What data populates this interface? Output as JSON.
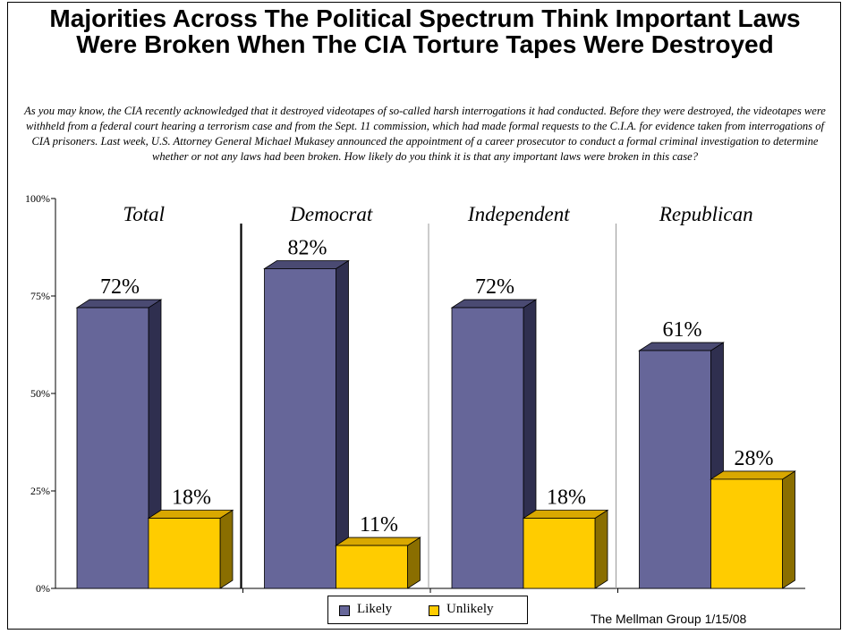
{
  "title": "Majorities Across The Political Spectrum Think Important Laws Were Broken When The CIA Torture Tapes Were Destroyed",
  "subtitle": "As you may know, the CIA recently acknowledged that it destroyed videotapes of so-called harsh interrogations it had conducted.  Before they were destroyed, the videotapes were withheld from a federal court hearing a terrorism case and from the Sept. 11 commission, which had made formal requests to the C.I.A. for evidence taken from interrogations of CIA prisoners.  Last week, U.S. Attorney General Michael Mukasey announced the appointment of a career prosecutor to conduct a formal criminal investigation to determine whether or not any laws had been broken. How likely do you think it is that any important laws were broken in this case?",
  "source": "The Mellman Group 1/15/08",
  "chart_data": {
    "type": "bar",
    "categories": [
      "Total",
      "Democrat",
      "Independent",
      "Republican"
    ],
    "series": [
      {
        "name": "Likely",
        "values": [
          72,
          82,
          72,
          61
        ],
        "labels": [
          "72%",
          "82%",
          "72%",
          "61%"
        ],
        "color": "#666699"
      },
      {
        "name": "Unlikely",
        "values": [
          18,
          11,
          18,
          28
        ],
        "labels": [
          "18%",
          "11%",
          "18%",
          "28%"
        ],
        "color": "#FFCC00"
      }
    ],
    "ylim": [
      0,
      100
    ],
    "yticks": [
      0,
      25,
      50,
      75,
      100
    ],
    "ytick_labels": [
      "0%",
      "25%",
      "50%",
      "75%",
      "100%"
    ],
    "legend_position": "bottom",
    "grid": false
  }
}
